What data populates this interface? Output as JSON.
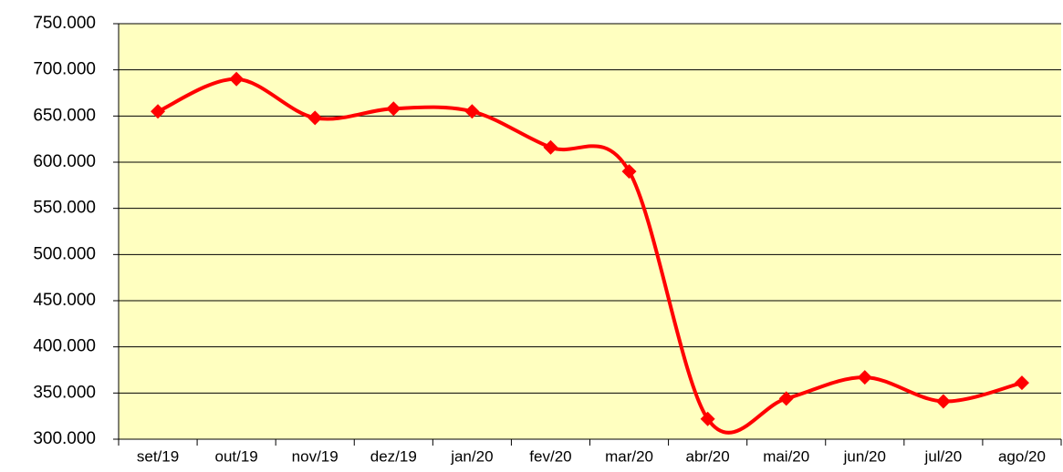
{
  "chart_data": {
    "type": "line",
    "categories": [
      "set/19",
      "out/19",
      "nov/19",
      "dez/19",
      "jan/20",
      "fev/20",
      "mar/20",
      "abr/20",
      "mai/20",
      "jun/20",
      "jul/20",
      "ago/20"
    ],
    "series": [
      {
        "color": "#ff0000",
        "values": [
          655000,
          690000,
          648000,
          658000,
          655000,
          616000,
          590000,
          322000,
          344000,
          367000,
          341000,
          361000
        ]
      }
    ],
    "ylim": [
      300000,
      750000
    ],
    "yticks": [
      {
        "value": 300000,
        "label": "300.000"
      },
      {
        "value": 350000,
        "label": "350.000"
      },
      {
        "value": 400000,
        "label": "400.000"
      },
      {
        "value": 450000,
        "label": "450.000"
      },
      {
        "value": 500000,
        "label": "500.000"
      },
      {
        "value": 550000,
        "label": "550.000"
      },
      {
        "value": 600000,
        "label": "600.000"
      },
      {
        "value": 650000,
        "label": "650.000"
      },
      {
        "value": 700000,
        "label": "700.000"
      },
      {
        "value": 750000,
        "label": "750.000"
      }
    ],
    "grid": true,
    "background": "#ffffc0",
    "smooth": true
  }
}
